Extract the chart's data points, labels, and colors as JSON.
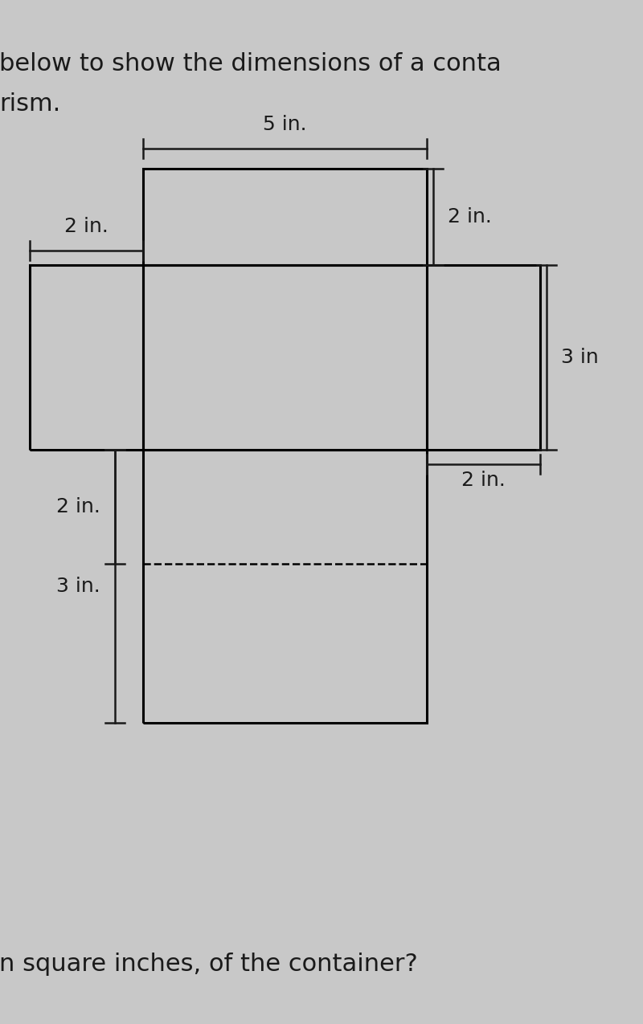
{
  "bg_color": "#c8c8c8",
  "text_color": "#1a1a1a",
  "title_line1": "below to show the dimensions of a conta",
  "title_line2": "rism.",
  "footer": "n square inches, of the container?",
  "dim_5": "5 in.",
  "dim_2_top": "2 in.",
  "dim_2_left": "2 in.",
  "dim_3_right": "3 in",
  "dim_2_right_bottom": "2 in.",
  "dim_2_bottom_left": "2 in.",
  "dim_3_bottom_left": "3 in.",
  "font_size_title": 22,
  "font_size_dim": 18,
  "font_size_footer": 22
}
